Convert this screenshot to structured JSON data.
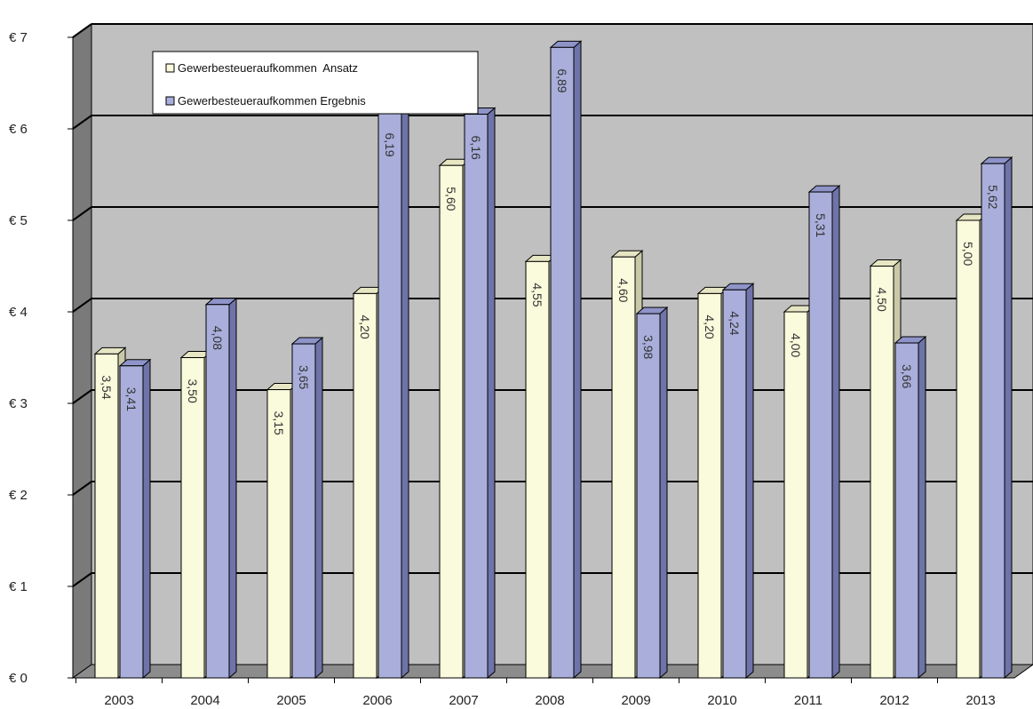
{
  "chart_data": {
    "type": "bar",
    "categories": [
      "2003",
      "2004",
      "2005",
      "2006",
      "2007",
      "2008",
      "2009",
      "2010",
      "2011",
      "2012",
      "2013"
    ],
    "series": [
      {
        "name": "Gewerbesteueraufkommen  Ansatz",
        "values": [
          3.54,
          3.5,
          3.15,
          4.2,
          5.6,
          4.55,
          4.6,
          4.2,
          4.0,
          4.5,
          5.0
        ],
        "labels": [
          "3,54",
          "3,50",
          "3,15",
          "4,20",
          "5,60",
          "4,55",
          "4,60",
          "4,20",
          "4,00",
          "4,50",
          "5,00"
        ],
        "color": "#fafadc"
      },
      {
        "name": "Gewerbesteueraufkommen Ergebnis",
        "values": [
          3.41,
          4.08,
          3.65,
          6.19,
          6.16,
          6.89,
          3.98,
          4.24,
          5.31,
          3.66,
          5.62
        ],
        "labels": [
          "3,41",
          "4,08",
          "3,65",
          "6,19",
          "6,16",
          "6,89",
          "3,98",
          "4,24",
          "5,31",
          "3,66",
          "5,62"
        ],
        "color": "#a9aedb"
      }
    ],
    "yticks": [
      "€ 0",
      "€ 1",
      "€ 2",
      "€ 3",
      "€ 4",
      "€ 5",
      "€ 6",
      "€ 7"
    ],
    "ylim": [
      0,
      7
    ],
    "grid": true,
    "legend": "top-left",
    "colors": {
      "wall": "#c0c0c0",
      "floor": "#8c8c8c",
      "side_wall": "#7a7a7a",
      "grid": "#000000"
    }
  }
}
